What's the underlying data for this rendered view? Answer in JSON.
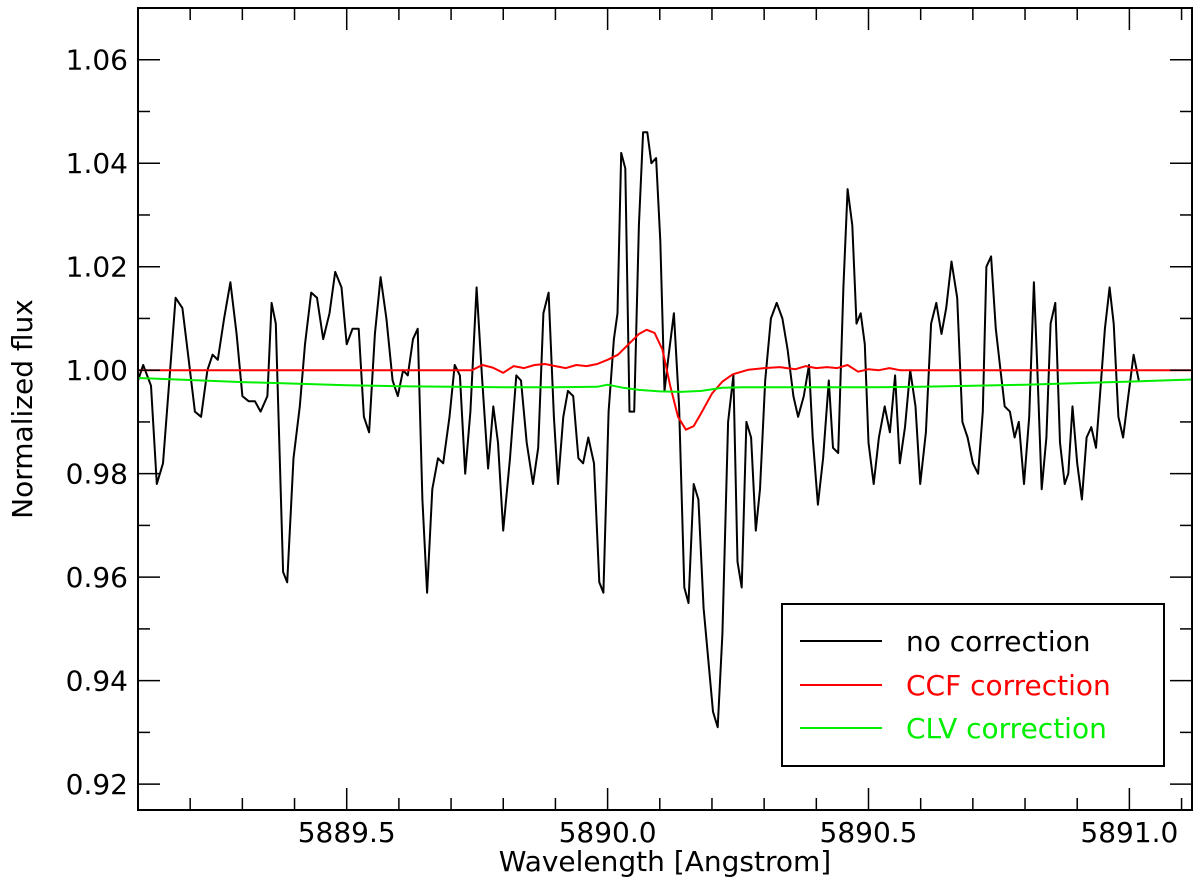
{
  "chart_data": {
    "type": "line",
    "title": "",
    "xlabel": "Wavelength [Angstrom]",
    "ylabel": "Normalized flux",
    "xlim": [
      5889.1,
      5891.12
    ],
    "ylim": [
      0.915,
      1.07
    ],
    "x_ticks": [
      5889.5,
      5890.0,
      5890.5,
      5891.0
    ],
    "x_tick_labels": [
      "5889.5",
      "5890.0",
      "5890.5",
      "5891.0"
    ],
    "y_ticks": [
      0.92,
      0.94,
      0.96,
      0.98,
      1.0,
      1.02,
      1.04,
      1.06
    ],
    "y_tick_labels": [
      "0.92",
      "0.94",
      "0.96",
      "0.98",
      "1.00",
      "1.02",
      "1.04",
      "1.06"
    ],
    "grid": false,
    "legend_position": "bottom-right",
    "series": [
      {
        "name": "no correction",
        "color": "#000000",
        "points": [
          [
            5889.1,
            0.998
          ],
          [
            5889.11,
            1.001
          ],
          [
            5889.125,
            0.997
          ],
          [
            5889.136,
            0.978
          ],
          [
            5889.148,
            0.982
          ],
          [
            5889.163,
            1.002
          ],
          [
            5889.172,
            1.014
          ],
          [
            5889.185,
            1.012
          ],
          [
            5889.196,
            1.003
          ],
          [
            5889.209,
            0.992
          ],
          [
            5889.221,
            0.991
          ],
          [
            5889.233,
            1.0
          ],
          [
            5889.243,
            1.003
          ],
          [
            5889.253,
            1.002
          ],
          [
            5889.265,
            1.01
          ],
          [
            5889.277,
            1.017
          ],
          [
            5889.289,
            1.007
          ],
          [
            5889.3,
            0.995
          ],
          [
            5889.312,
            0.994
          ],
          [
            5889.324,
            0.994
          ],
          [
            5889.335,
            0.992
          ],
          [
            5889.348,
            0.995
          ],
          [
            5889.356,
            1.013
          ],
          [
            5889.364,
            1.009
          ],
          [
            5889.378,
            0.961
          ],
          [
            5889.386,
            0.959
          ],
          [
            5889.398,
            0.983
          ],
          [
            5889.41,
            0.993
          ],
          [
            5889.42,
            1.005
          ],
          [
            5889.432,
            1.015
          ],
          [
            5889.443,
            1.014
          ],
          [
            5889.455,
            1.006
          ],
          [
            5889.467,
            1.011
          ],
          [
            5889.478,
            1.019
          ],
          [
            5889.49,
            1.016
          ],
          [
            5889.5,
            1.005
          ],
          [
            5889.511,
            1.008
          ],
          [
            5889.523,
            1.008
          ],
          [
            5889.533,
            0.991
          ],
          [
            5889.543,
            0.988
          ],
          [
            5889.554,
            1.007
          ],
          [
            5889.565,
            1.018
          ],
          [
            5889.576,
            1.01
          ],
          [
            5889.588,
            0.998
          ],
          [
            5889.598,
            0.995
          ],
          [
            5889.608,
            1.0
          ],
          [
            5889.617,
            0.999
          ],
          [
            5889.627,
            1.006
          ],
          [
            5889.636,
            1.008
          ],
          [
            5889.645,
            0.975
          ],
          [
            5889.654,
            0.957
          ],
          [
            5889.664,
            0.977
          ],
          [
            5889.675,
            0.983
          ],
          [
            5889.685,
            0.982
          ],
          [
            5889.697,
            0.991
          ],
          [
            5889.707,
            1.001
          ],
          [
            5889.717,
            0.999
          ],
          [
            5889.727,
            0.98
          ],
          [
            5889.737,
            0.992
          ],
          [
            5889.749,
            1.016
          ],
          [
            5889.759,
            0.999
          ],
          [
            5889.771,
            0.981
          ],
          [
            5889.781,
            0.993
          ],
          [
            5889.79,
            0.986
          ],
          [
            5889.8,
            0.969
          ],
          [
            5889.813,
            0.983
          ],
          [
            5889.825,
            0.999
          ],
          [
            5889.834,
            0.998
          ],
          [
            5889.845,
            0.986
          ],
          [
            5889.857,
            0.978
          ],
          [
            5889.867,
            0.985
          ],
          [
            5889.877,
            1.011
          ],
          [
            5889.887,
            1.015
          ],
          [
            5889.897,
            0.991
          ],
          [
            5889.905,
            0.978
          ],
          [
            5889.915,
            0.991
          ],
          [
            5889.924,
            0.996
          ],
          [
            5889.934,
            0.995
          ],
          [
            5889.944,
            0.983
          ],
          [
            5889.953,
            0.982
          ],
          [
            5889.963,
            0.987
          ],
          [
            5889.974,
            0.982
          ],
          [
            5889.984,
            0.959
          ],
          [
            5889.992,
            0.957
          ],
          [
            5890.002,
            0.992
          ],
          [
            5890.012,
            1.006
          ],
          [
            5890.019,
            1.011
          ],
          [
            5890.026,
            1.042
          ],
          [
            5890.034,
            1.039
          ],
          [
            5890.042,
            0.992
          ],
          [
            5890.051,
            0.992
          ],
          [
            5890.06,
            1.028
          ],
          [
            5890.068,
            1.046
          ],
          [
            5890.076,
            1.046
          ],
          [
            5890.084,
            1.04
          ],
          [
            5890.093,
            1.041
          ],
          [
            5890.101,
            1.025
          ],
          [
            5890.109,
            0.996
          ],
          [
            5890.117,
            1.003
          ],
          [
            5890.127,
            1.011
          ],
          [
            5890.137,
            0.993
          ],
          [
            5890.147,
            0.958
          ],
          [
            5890.155,
            0.955
          ],
          [
            5890.165,
            0.978
          ],
          [
            5890.174,
            0.975
          ],
          [
            5890.184,
            0.954
          ],
          [
            5890.193,
            0.944
          ],
          [
            5890.202,
            0.934
          ],
          [
            5890.211,
            0.931
          ],
          [
            5890.22,
            0.949
          ],
          [
            5890.231,
            0.99
          ],
          [
            5890.241,
            0.999
          ],
          [
            5890.249,
            0.963
          ],
          [
            5890.257,
            0.958
          ],
          [
            5890.266,
            0.99
          ],
          [
            5890.275,
            0.987
          ],
          [
            5890.284,
            0.969
          ],
          [
            5890.292,
            0.977
          ],
          [
            5890.302,
            0.998
          ],
          [
            5890.313,
            1.01
          ],
          [
            5890.324,
            1.013
          ],
          [
            5890.335,
            1.01
          ],
          [
            5890.345,
            1.004
          ],
          [
            5890.356,
            0.995
          ],
          [
            5890.365,
            0.991
          ],
          [
            5890.376,
            0.995
          ],
          [
            5890.386,
            1.001
          ],
          [
            5890.393,
            0.987
          ],
          [
            5890.403,
            0.974
          ],
          [
            5890.413,
            0.983
          ],
          [
            5890.424,
            0.998
          ],
          [
            5890.432,
            0.985
          ],
          [
            5890.442,
            0.984
          ],
          [
            5890.452,
            1.016
          ],
          [
            5890.46,
            1.035
          ],
          [
            5890.469,
            1.028
          ],
          [
            5890.477,
            1.009
          ],
          [
            5890.485,
            1.011
          ],
          [
            5890.493,
            1.005
          ],
          [
            5890.5,
            0.986
          ],
          [
            5890.51,
            0.978
          ],
          [
            5890.52,
            0.987
          ],
          [
            5890.531,
            0.993
          ],
          [
            5890.541,
            0.988
          ],
          [
            5890.551,
            0.999
          ],
          [
            5890.56,
            0.982
          ],
          [
            5890.57,
            0.989
          ],
          [
            5890.58,
            1.0
          ],
          [
            5890.59,
            0.993
          ],
          [
            5890.599,
            0.978
          ],
          [
            5890.61,
            0.988
          ],
          [
            5890.62,
            1.009
          ],
          [
            5890.63,
            1.013
          ],
          [
            5890.64,
            1.007
          ],
          [
            5890.649,
            1.012
          ],
          [
            5890.659,
            1.021
          ],
          [
            5890.67,
            1.014
          ],
          [
            5890.68,
            0.99
          ],
          [
            5890.69,
            0.987
          ],
          [
            5890.7,
            0.982
          ],
          [
            5890.71,
            0.98
          ],
          [
            5890.719,
            0.992
          ],
          [
            5890.726,
            1.02
          ],
          [
            5890.735,
            1.022
          ],
          [
            5890.744,
            1.008
          ],
          [
            5890.753,
            1.0
          ],
          [
            5890.761,
            0.993
          ],
          [
            5890.771,
            0.992
          ],
          [
            5890.78,
            0.987
          ],
          [
            5890.788,
            0.99
          ],
          [
            5890.798,
            0.978
          ],
          [
            5890.808,
            0.991
          ],
          [
            5890.817,
            1.017
          ],
          [
            5890.823,
            1.002
          ],
          [
            5890.832,
            0.977
          ],
          [
            5890.841,
            0.987
          ],
          [
            5890.849,
            1.009
          ],
          [
            5890.858,
            1.013
          ],
          [
            5890.867,
            0.986
          ],
          [
            5890.876,
            0.978
          ],
          [
            5890.883,
            0.98
          ],
          [
            5890.891,
            0.993
          ],
          [
            5890.9,
            0.982
          ],
          [
            5890.909,
            0.975
          ],
          [
            5890.918,
            0.987
          ],
          [
            5890.927,
            0.989
          ],
          [
            5890.936,
            0.985
          ],
          [
            5890.945,
            0.997
          ],
          [
            5890.953,
            1.008
          ],
          [
            5890.962,
            1.016
          ],
          [
            5890.97,
            1.009
          ],
          [
            5890.979,
            0.991
          ],
          [
            5890.988,
            0.987
          ],
          [
            5890.998,
            0.995
          ],
          [
            5891.008,
            1.003
          ],
          [
            5891.018,
            0.998
          ]
        ]
      },
      {
        "name": "CCF correction",
        "color": "#ff0000",
        "points": [
          [
            5889.1,
            1.0
          ],
          [
            5889.74,
            1.0
          ],
          [
            5889.76,
            1.001
          ],
          [
            5889.78,
            1.0005
          ],
          [
            5889.8,
            0.9995
          ],
          [
            5889.82,
            1.0008
          ],
          [
            5889.84,
            1.0004
          ],
          [
            5889.86,
            1.001
          ],
          [
            5889.88,
            1.0012
          ],
          [
            5889.9,
            1.0008
          ],
          [
            5889.92,
            1.0004
          ],
          [
            5889.94,
            1.001
          ],
          [
            5889.96,
            1.0008
          ],
          [
            5889.98,
            1.0012
          ],
          [
            5890.0,
            1.002
          ],
          [
            5890.02,
            1.003
          ],
          [
            5890.04,
            1.005
          ],
          [
            5890.06,
            1.007
          ],
          [
            5890.075,
            1.0078
          ],
          [
            5890.09,
            1.0072
          ],
          [
            5890.105,
            1.004
          ],
          [
            5890.12,
            0.997
          ],
          [
            5890.135,
            0.991
          ],
          [
            5890.15,
            0.9885
          ],
          [
            5890.165,
            0.9892
          ],
          [
            5890.18,
            0.9918
          ],
          [
            5890.2,
            0.9955
          ],
          [
            5890.22,
            0.9978
          ],
          [
            5890.24,
            0.9992
          ],
          [
            5890.27,
            1.0001
          ],
          [
            5890.3,
            1.0004
          ],
          [
            5890.33,
            1.0006
          ],
          [
            5890.36,
            1.0002
          ],
          [
            5890.38,
            1.0008
          ],
          [
            5890.4,
            1.0004
          ],
          [
            5890.42,
            1.0006
          ],
          [
            5890.44,
            1.0004
          ],
          [
            5890.46,
            1.001
          ],
          [
            5890.48,
            0.9997
          ],
          [
            5890.5,
            1.0002
          ],
          [
            5890.52,
            1.0
          ],
          [
            5890.54,
            1.0004
          ],
          [
            5890.56,
            1.0
          ],
          [
            5891.12,
            1.0
          ]
        ]
      },
      {
        "name": "CLV correction",
        "color": "#00ee00",
        "points": [
          [
            5889.1,
            0.9985
          ],
          [
            5889.2,
            0.9981
          ],
          [
            5889.3,
            0.9977
          ],
          [
            5889.4,
            0.9974
          ],
          [
            5889.5,
            0.9971
          ],
          [
            5889.6,
            0.9969
          ],
          [
            5889.7,
            0.9968
          ],
          [
            5889.8,
            0.9967
          ],
          [
            5889.9,
            0.9967
          ],
          [
            5889.98,
            0.9968
          ],
          [
            5890.0,
            0.9972
          ],
          [
            5890.03,
            0.9966
          ],
          [
            5890.06,
            0.9962
          ],
          [
            5890.1,
            0.9959
          ],
          [
            5890.14,
            0.9958
          ],
          [
            5890.18,
            0.996
          ],
          [
            5890.22,
            0.9966
          ],
          [
            5890.26,
            0.9967
          ],
          [
            5890.3,
            0.9967
          ],
          [
            5890.4,
            0.9967
          ],
          [
            5890.5,
            0.9967
          ],
          [
            5890.6,
            0.9968
          ],
          [
            5890.7,
            0.997
          ],
          [
            5890.8,
            0.9972
          ],
          [
            5890.9,
            0.9975
          ],
          [
            5891.0,
            0.9978
          ],
          [
            5891.12,
            0.9982
          ]
        ]
      }
    ]
  }
}
